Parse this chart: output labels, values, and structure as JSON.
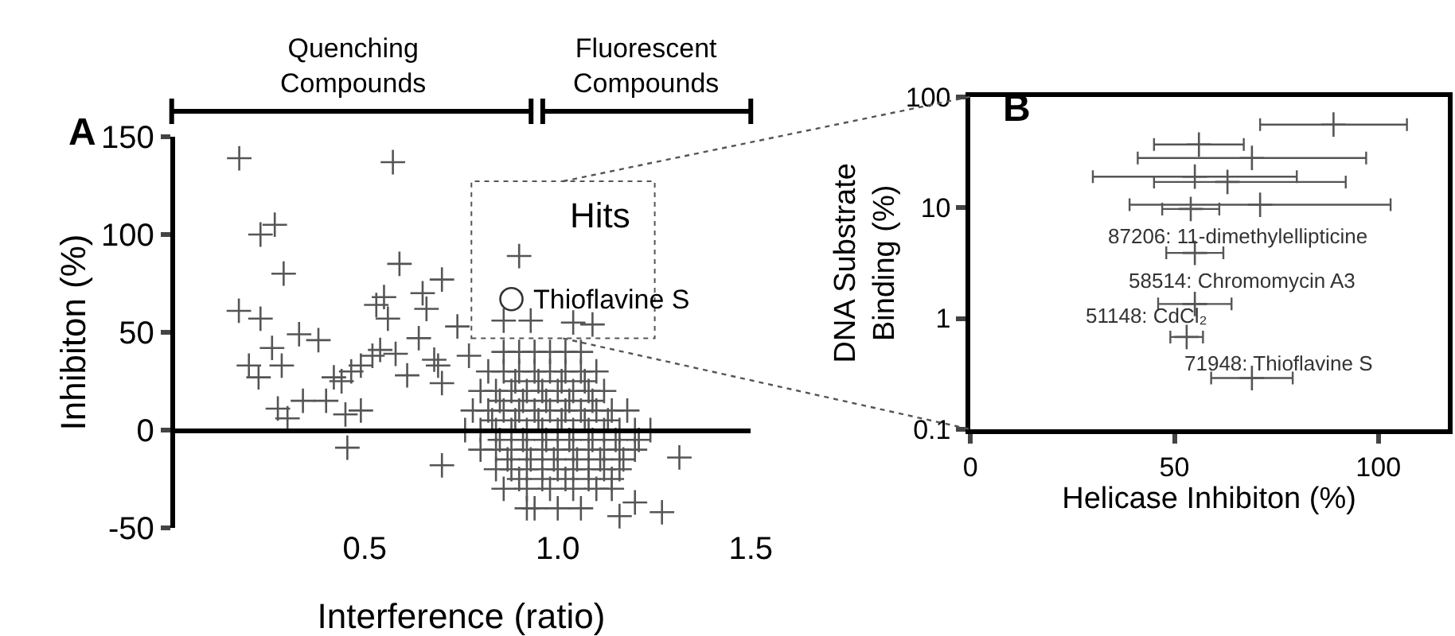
{
  "chart_data": [
    {
      "type": "scatter",
      "xlabel": "Interference (ratio)",
      "ylabel": "Inhibiton (%)",
      "xlim": [
        0,
        1.5
      ],
      "xticks": [
        0.5,
        {
          "value": 1.0,
          "label": "1.0"
        },
        1.5
      ],
      "ylim": [
        -50,
        150
      ],
      "yticks": [
        -50,
        0,
        50,
        100,
        150
      ],
      "series": [
        {
          "color": "#555555",
          "marker": "cross",
          "x": [
            0.175,
            0.573,
            0.23,
            0.267,
            0.29,
            0.59,
            0.174,
            0.23,
            0.26,
            0.285,
            0.2,
            0.225,
            0.33,
            0.38,
            0.275,
            0.3,
            0.34,
            0.4,
            0.42,
            0.44,
            0.465,
            0.49,
            0.52,
            0.54,
            0.53,
            0.55,
            0.56,
            0.58,
            0.61,
            0.64,
            0.65,
            0.66,
            0.7,
            0.68,
            0.69,
            0.7,
            0.45,
            0.49,
            0.455,
            0.74,
            0.77,
            0.7,
            0.9,
            0.86,
            0.93,
            1.04,
            1.09,
            1.315,
            1.27,
            1.16,
            1.2,
            0.92,
            0.86,
            0.9,
            0.94,
            0.98,
            1.02,
            1.06,
            0.82,
            0.86,
            0.9,
            0.94,
            0.98,
            1.02,
            1.06,
            1.1,
            0.8,
            0.84,
            0.88,
            0.92,
            0.96,
            1.0,
            1.04,
            1.08,
            1.12,
            0.78,
            0.82,
            0.86,
            0.9,
            0.94,
            0.98,
            1.02,
            1.06,
            1.1,
            1.14,
            1.18,
            0.76,
            0.8,
            0.84,
            0.88,
            0.92,
            0.96,
            1.0,
            1.04,
            1.08,
            1.12,
            1.16,
            1.2,
            1.24,
            0.8,
            0.84,
            0.88,
            0.92,
            0.96,
            1.0,
            1.04,
            1.08,
            1.12,
            1.16,
            1.2,
            0.84,
            0.88,
            0.92,
            0.96,
            1.0,
            1.04,
            1.08,
            1.12,
            1.16,
            0.86,
            0.92,
            0.98,
            1.04,
            1.1,
            1.14,
            0.94,
            1.0,
            1.06,
            0.83,
            0.89,
            0.95,
            1.01,
            1.07,
            1.13,
            0.85,
            0.91,
            0.97,
            1.03,
            1.09,
            1.15,
            1.21,
            0.85,
            0.91,
            0.97,
            1.03,
            1.09,
            0.87,
            0.93,
            0.99,
            1.05,
            1.11,
            1.17,
            0.89,
            0.95,
            1.01,
            1.07,
            0.9,
            0.96,
            1.02,
            1.08,
            1.14
          ],
          "values": [
            139,
            137,
            100,
            105,
            80,
            85,
            61,
            57,
            42,
            33,
            33,
            27,
            49,
            46,
            11,
            6,
            15,
            15,
            27,
            25,
            30,
            33,
            38,
            41,
            64,
            68,
            57,
            39,
            28,
            47,
            70,
            62,
            77,
            36,
            33,
            24,
            8,
            10,
            -9,
            53,
            38,
            -18,
            89,
            56,
            56,
            55,
            54,
            -14,
            -42,
            -44,
            -37,
            -40,
            40,
            40,
            40,
            40,
            40,
            40,
            30,
            30,
            30,
            30,
            30,
            30,
            30,
            30,
            20,
            20,
            20,
            20,
            20,
            20,
            20,
            20,
            20,
            10,
            10,
            10,
            10,
            10,
            10,
            10,
            10,
            10,
            10,
            10,
            0,
            0,
            0,
            0,
            0,
            0,
            0,
            0,
            0,
            0,
            0,
            0,
            0,
            -10,
            -10,
            -10,
            -10,
            -10,
            -10,
            -10,
            -10,
            -10,
            -10,
            -10,
            -20,
            -20,
            -20,
            -20,
            -20,
            -20,
            -20,
            -20,
            -20,
            -30,
            -30,
            -30,
            -30,
            -30,
            -30,
            -40,
            -40,
            -40,
            5,
            5,
            5,
            5,
            5,
            5,
            -5,
            -5,
            -5,
            -5,
            -5,
            -5,
            -5,
            15,
            15,
            15,
            15,
            15,
            -15,
            -15,
            -15,
            -15,
            -15,
            -15,
            25,
            25,
            25,
            25,
            -25,
            -25,
            -25,
            -25,
            -25
          ]
        },
        {
          "color": "#333333",
          "marker": "circle",
          "x": [
            0.88
          ],
          "values": [
            67
          ]
        }
      ],
      "annotations": [
        "A",
        "Quenching\nCompounds",
        "Fluorescent\nCompounds",
        "Hits",
        {
          "text": "Thioflavine S",
          "x": 0.88,
          "y": 67
        }
      ]
    },
    {
      "type": "scatter",
      "xlabel": "Helicase Inhibiton (%)",
      "ylabel": "DNA Substrate\nBinding (%)",
      "log": "y",
      "xlim": [
        0,
        117
      ],
      "xticks": [
        0,
        50,
        100
      ],
      "ylim": [
        0.1,
        100
      ],
      "yticks": [
        0.1,
        1,
        10,
        100
      ],
      "series": [
        {
          "color": "#555555",
          "marker": "cross",
          "x": [
            89,
            56,
            69,
            55,
            63,
            71,
            54,
            55,
            55,
            53,
            69
          ],
          "values": [
            56,
            37,
            28,
            19,
            17,
            10.6,
            9.7,
            3.9,
            1.35,
            0.68,
            0.29
          ],
          "xerrors": [
            [
              71,
              107
            ],
            [
              45,
              67
            ],
            [
              41,
              97
            ],
            [
              30,
              80
            ],
            [
              45,
              92
            ],
            [
              39,
              103
            ],
            [
              47,
              61
            ],
            [
              48,
              62
            ],
            [
              46,
              64
            ],
            [
              49,
              57
            ],
            [
              59,
              79
            ]
          ]
        }
      ],
      "annotations": [
        "B",
        "87206: 11-dimethylellipticine",
        "58514: Chromomycin A3",
        "51148: CdCl₂",
        "71948: Thioflavine S"
      ]
    }
  ]
}
